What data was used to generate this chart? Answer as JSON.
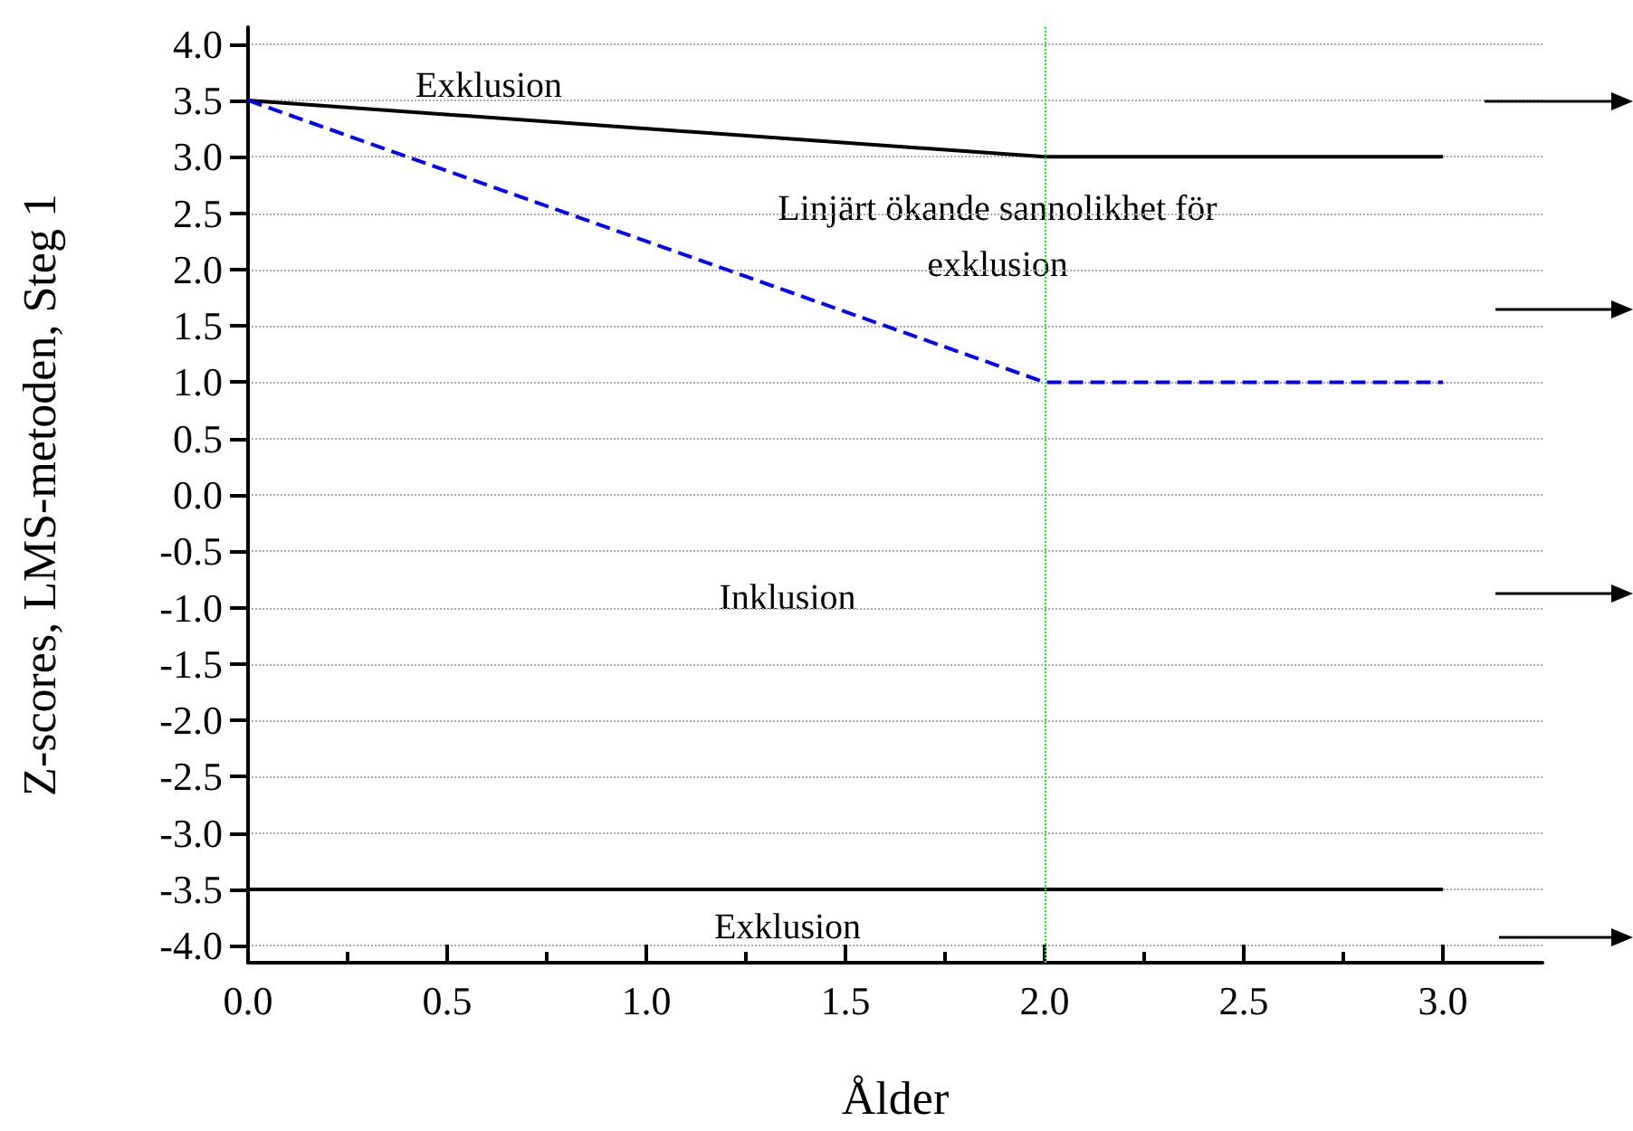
{
  "chart_data": {
    "type": "line",
    "xlabel": "Ålder",
    "ylabel": "Z-scores, LMS-metoden, Steg 1",
    "xlim": [
      0,
      3.25
    ],
    "xticks": [
      {
        "value": 0,
        "label": "0.0"
      },
      0.5,
      {
        "value": 1,
        "label": "1.0"
      },
      1.5,
      {
        "value": 2,
        "label": "2.0"
      },
      2.5,
      {
        "value": 3,
        "label": "3.0"
      }
    ],
    "ylim": [
      -4.15,
      4.15
    ],
    "yticks": [
      {
        "value": -4,
        "label": "-4.0"
      },
      -3.5,
      {
        "value": -3,
        "label": "-3.0"
      },
      -2.5,
      {
        "value": -2,
        "label": "-2.0"
      },
      -1.5,
      {
        "value": -1,
        "label": "-1.0"
      },
      -0.5,
      {
        "value": 0,
        "label": "0.0"
      },
      0.5,
      {
        "value": 1,
        "label": "1.0"
      },
      1.5,
      {
        "value": 2,
        "label": "2.0"
      },
      2.5,
      {
        "value": 3,
        "label": "3.0"
      },
      3.5,
      {
        "value": 4,
        "label": "4.0"
      }
    ],
    "grid": "y",
    "marker": "none",
    "series": [
      {
        "color": "#000000",
        "line_style": "solid",
        "x": [
          0,
          2,
          3
        ],
        "values": [
          3.5,
          3,
          3
        ]
      },
      {
        "color": "#0000ff",
        "line_style": "dashed",
        "x": [
          0,
          2,
          3
        ],
        "values": [
          3.5,
          1,
          1
        ]
      },
      {
        "color": "#000000",
        "line_style": "solid",
        "x": [
          0,
          3
        ],
        "values": [
          -3.5,
          -3.5
        ]
      }
    ],
    "ref_lines": [
      {
        "axis": "x",
        "value": 2,
        "color": "#00ff00",
        "line_style": "dotted"
      }
    ],
    "annotations": [
      "Exklusion",
      "Linjärt ökande sannolikhet för\nexklusion",
      "Inklusion",
      "Exklusion"
    ]
  }
}
